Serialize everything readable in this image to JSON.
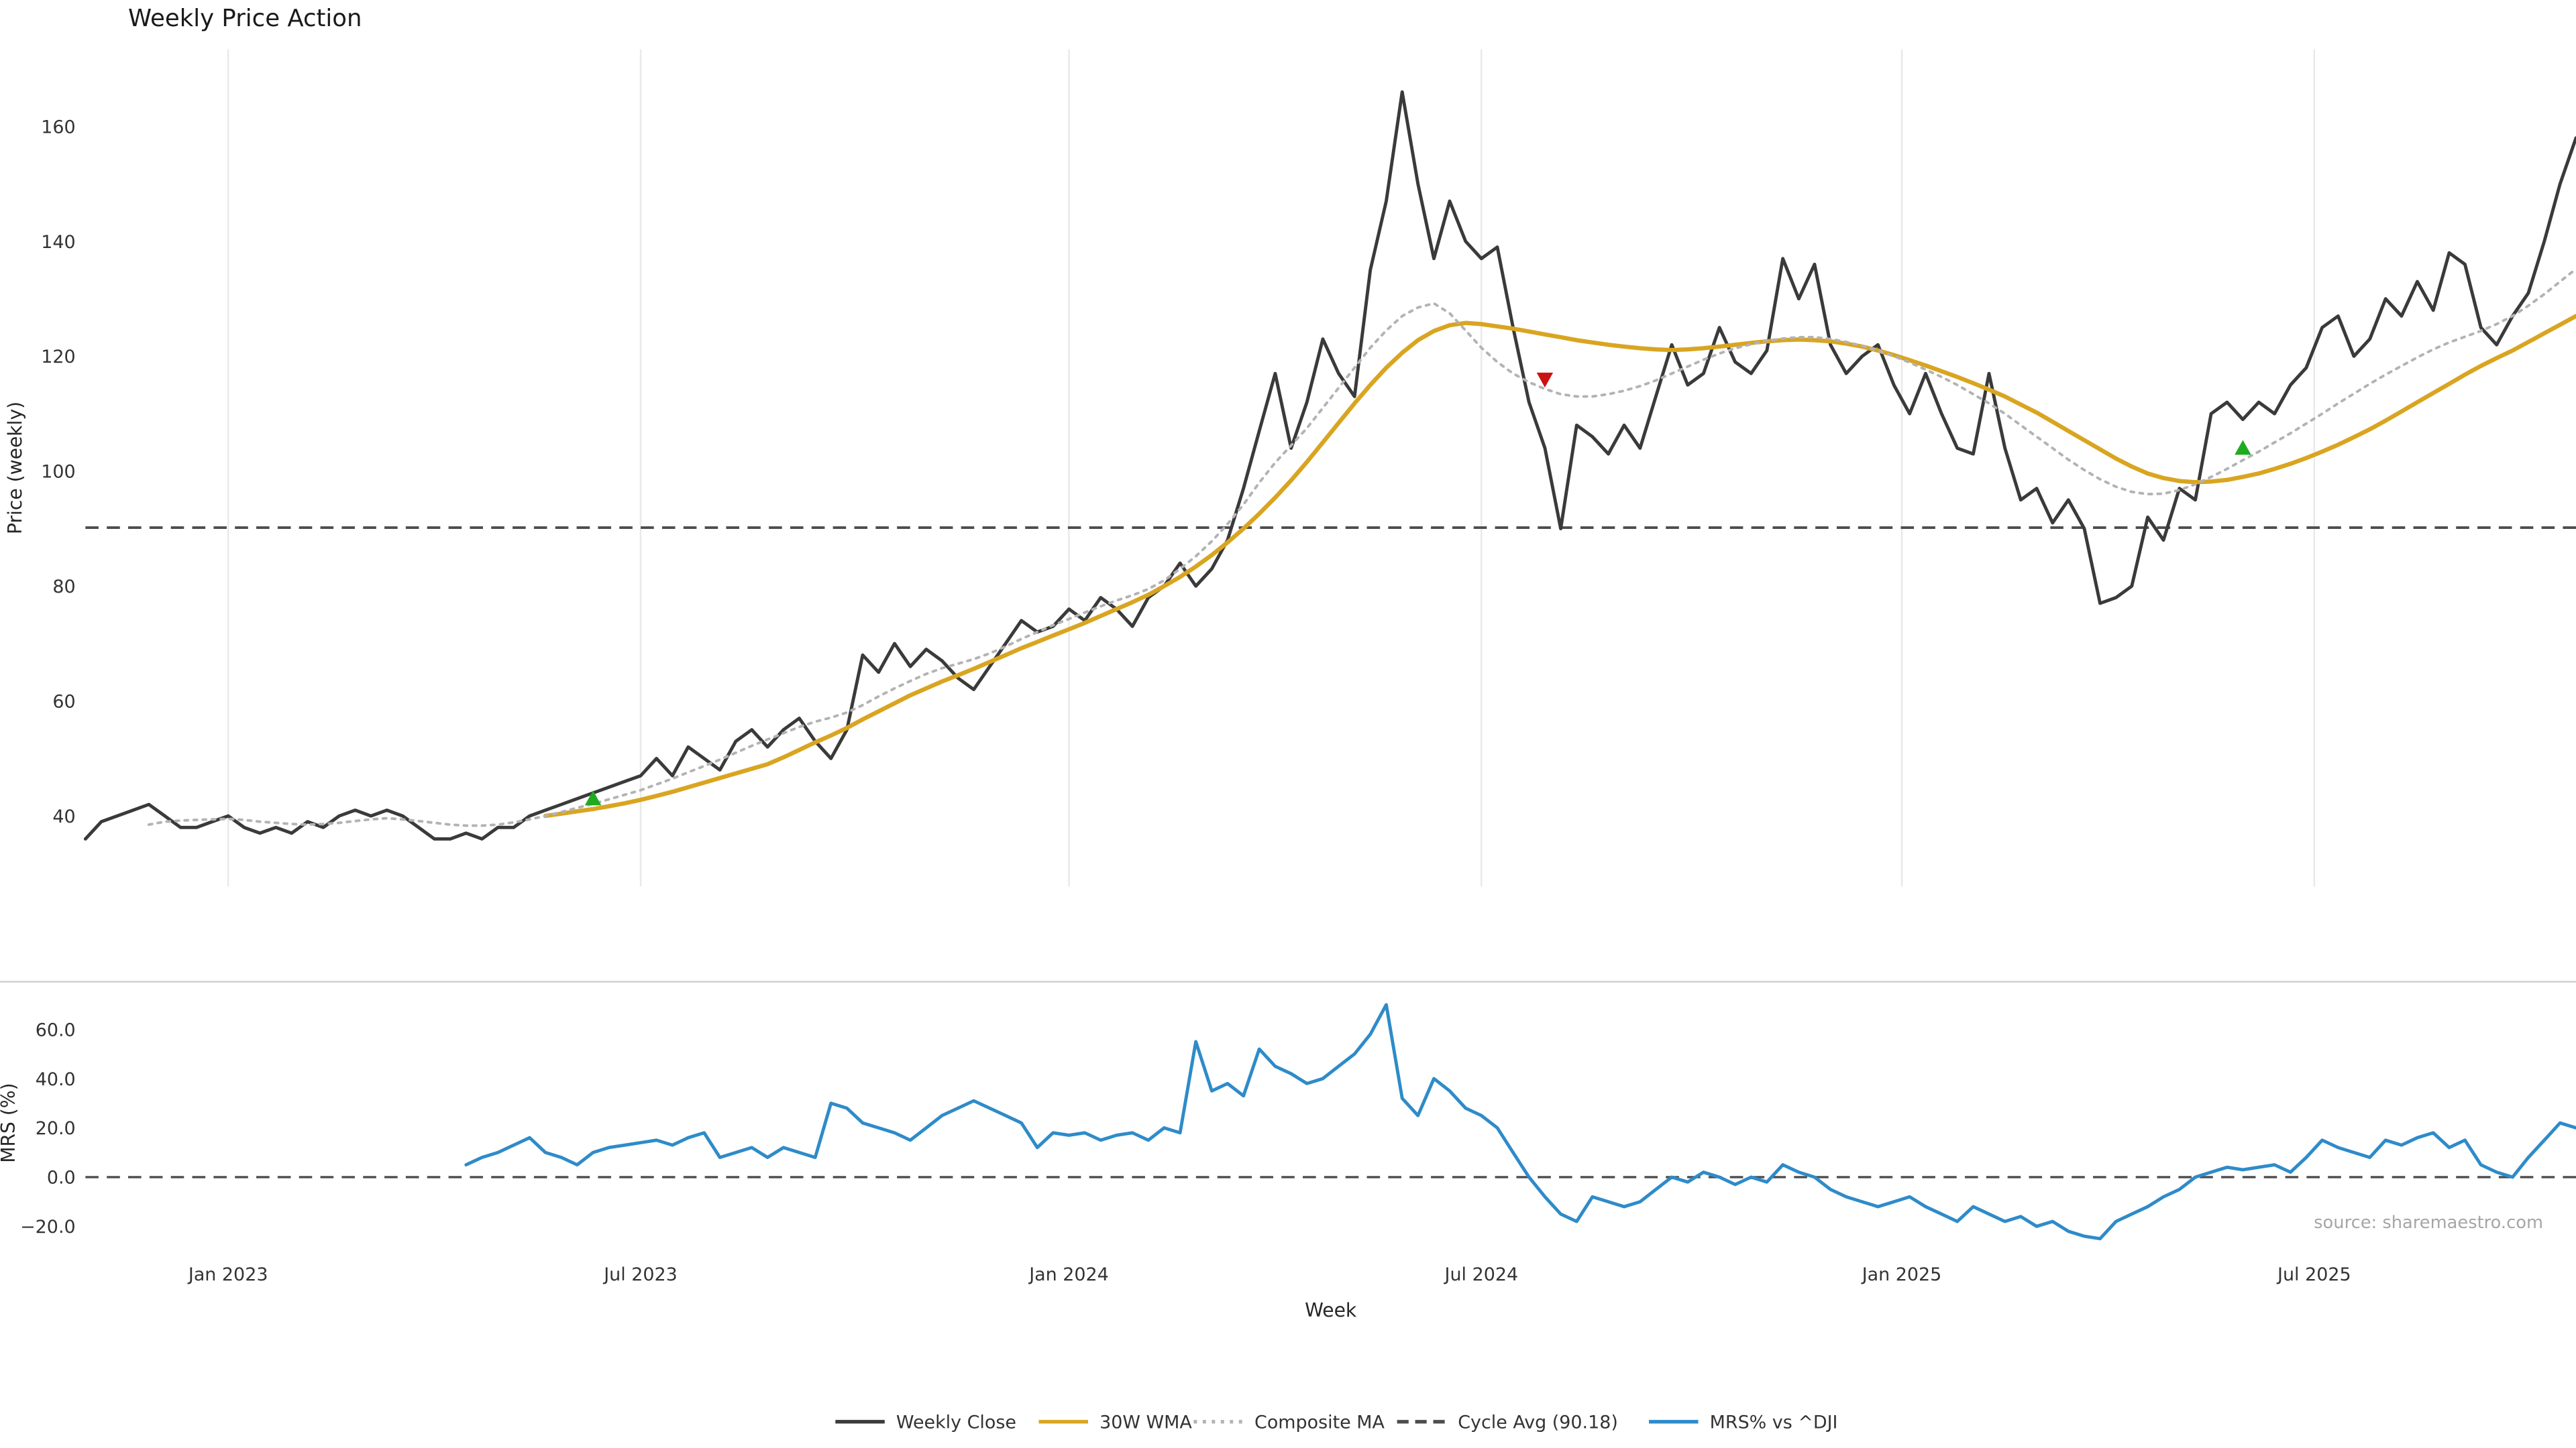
{
  "title": "Weekly Price Action",
  "source": "source: sharemaestro.com",
  "colors": {
    "close": "#3a3a3a",
    "wma": "#d9a521",
    "composite": "#b3b3b3",
    "cycle": "#4d4d4d",
    "mrs": "#2e8bc9",
    "buy": "#1faa1f",
    "sell": "#cc1111",
    "grid": "#e9e9e9",
    "divider": "#d0d0d0"
  },
  "legend": {
    "items": [
      {
        "label": "Weekly Close",
        "style": "solid",
        "color": "#3a3a3a"
      },
      {
        "label": "30W WMA",
        "style": "solid",
        "color": "#d9a521"
      },
      {
        "label": "Composite MA",
        "style": "dotted",
        "color": "#b3b3b3"
      },
      {
        "label": "Cycle Avg (90.18)",
        "style": "dashed",
        "color": "#4d4d4d"
      },
      {
        "label": "MRS% vs ^DJI",
        "style": "solid",
        "color": "#2e8bc9"
      }
    ]
  },
  "chart_data": {
    "type": "line",
    "title": "Weekly Price Action",
    "xlabel": "Week",
    "weeks_total": 158,
    "x_tick_labels": [
      "Jan 2023",
      "Jul 2023",
      "Jan 2024",
      "Jul 2024",
      "Jan 2025",
      "Jul 2025"
    ],
    "x_tick_weeks": [
      9,
      35,
      62,
      88,
      114.5,
      140.5
    ],
    "price_panel": {
      "ylabel": "Price (weekly)",
      "yticks": [
        40,
        60,
        80,
        100,
        120,
        140,
        160
      ],
      "ylim": [
        28,
        173
      ],
      "cycle_avg": 90.18,
      "markers": [
        {
          "week": 32,
          "value": 43,
          "type": "buy"
        },
        {
          "week": 92,
          "value": 116,
          "type": "sell"
        },
        {
          "week": 136,
          "value": 104,
          "type": "buy"
        }
      ],
      "series": [
        {
          "name": "Weekly Close",
          "color": "#3a3a3a",
          "width": 2,
          "dash": "",
          "values": [
            36,
            39,
            40,
            41,
            42,
            40,
            38,
            38,
            39,
            40,
            38,
            37,
            38,
            37,
            39,
            38,
            40,
            41,
            40,
            41,
            40,
            38,
            36,
            36,
            37,
            36,
            38,
            38,
            40,
            41,
            42,
            43,
            44,
            45,
            46,
            47,
            50,
            47,
            52,
            50,
            48,
            53,
            55,
            52,
            55,
            57,
            53,
            50,
            55,
            68,
            65,
            70,
            66,
            69,
            67,
            64,
            62,
            66,
            70,
            74,
            72,
            73,
            76,
            74,
            78,
            76,
            73,
            78,
            80,
            84,
            80,
            83,
            88,
            97,
            107,
            117,
            104,
            112,
            123,
            117,
            113,
            135,
            147,
            166,
            150,
            137,
            147,
            140,
            137,
            139,
            125,
            112,
            104,
            90,
            108,
            106,
            103,
            108,
            104,
            113,
            122,
            115,
            117,
            125,
            119,
            117,
            121,
            137,
            130,
            136,
            122,
            117,
            120,
            122,
            115,
            110,
            117,
            110,
            104,
            103,
            117,
            104,
            95,
            97,
            91,
            95,
            90,
            77,
            78,
            80,
            92,
            88,
            97,
            95,
            110,
            112,
            109,
            112,
            110,
            115,
            118,
            125,
            127,
            120,
            123,
            130,
            127,
            133,
            128,
            138,
            136,
            125,
            122,
            127,
            131,
            140,
            150,
            158
          ]
        },
        {
          "name": "30W WMA",
          "color": "#d9a521",
          "width": 2.6,
          "dash": "",
          "values": [
            null,
            null,
            null,
            null,
            null,
            null,
            null,
            null,
            null,
            null,
            null,
            null,
            null,
            null,
            null,
            null,
            null,
            null,
            null,
            null,
            null,
            null,
            null,
            null,
            null,
            null,
            null,
            null,
            null,
            40,
            40.4,
            40.8,
            41.2,
            41.7,
            42.2,
            42.8,
            43.5,
            44.2,
            45,
            45.8,
            46.6,
            47.4,
            48.2,
            49,
            50.2,
            51.5,
            52.8,
            54,
            55.3,
            56.8,
            58.2,
            59.6,
            61,
            62.2,
            63.4,
            64.5,
            65.6,
            66.8,
            68,
            69.2,
            70.3,
            71.4,
            72.5,
            73.6,
            74.8,
            76,
            77.2,
            78.5,
            80,
            81.6,
            83.4,
            85.4,
            87.6,
            90,
            92.6,
            95.4,
            98.4,
            101.6,
            105,
            108.4,
            111.8,
            115,
            118,
            120.6,
            122.8,
            124.4,
            125.4,
            125.8,
            125.6,
            125.2,
            124.8,
            124.3,
            123.8,
            123.3,
            122.8,
            122.4,
            122,
            121.7,
            121.4,
            121.2,
            121.1,
            121.2,
            121.4,
            121.7,
            122,
            122.3,
            122.6,
            122.8,
            122.9,
            122.8,
            122.6,
            122.2,
            121.7,
            121,
            120.2,
            119.3,
            118.4,
            117.4,
            116.4,
            115.3,
            114.2,
            113,
            111.6,
            110.2,
            108.6,
            107,
            105.4,
            103.8,
            102.2,
            100.8,
            99.6,
            98.8,
            98.3,
            98.1,
            98.2,
            98.5,
            99,
            99.6,
            100.4,
            101.3,
            102.3,
            103.4,
            104.6,
            105.9,
            107.3,
            108.8,
            110.4,
            112,
            113.6,
            115.2,
            116.8,
            118.3,
            119.7,
            121,
            122.5,
            124,
            125.5,
            127
          ]
        },
        {
          "name": "Composite MA",
          "color": "#b3b3b3",
          "width": 1.6,
          "dash": "2 3.5",
          "values": [
            null,
            null,
            null,
            null,
            38.5,
            39,
            39.2,
            39.3,
            39.4,
            39.5,
            39.3,
            39,
            38.8,
            38.6,
            38.5,
            38.6,
            38.8,
            39.1,
            39.4,
            39.6,
            39.4,
            39.1,
            38.8,
            38.5,
            38.3,
            38.3,
            38.5,
            38.9,
            39.4,
            40,
            40.7,
            41.4,
            42.1,
            42.9,
            43.7,
            44.5,
            45.5,
            46.5,
            47.6,
            48.7,
            49.8,
            51,
            52.2,
            53.3,
            54.4,
            55.5,
            56.4,
            57.1,
            58,
            59.3,
            60.8,
            62.2,
            63.5,
            64.7,
            65.7,
            66.5,
            67.3,
            68.3,
            69.5,
            70.8,
            72,
            73.2,
            74.3,
            75.4,
            76.5,
            77.5,
            78.4,
            79.5,
            81,
            83,
            85.2,
            87.8,
            90.8,
            94.2,
            98,
            101.5,
            104.5,
            107.5,
            111,
            114.5,
            118,
            121.5,
            124.5,
            127,
            128.5,
            129.2,
            127.5,
            124.5,
            121.5,
            119,
            117,
            115.5,
            114.3,
            113.4,
            113,
            113,
            113.4,
            114,
            114.8,
            115.8,
            117,
            118.2,
            119.4,
            120.5,
            121.4,
            122.1,
            122.7,
            123.1,
            123.3,
            123.3,
            123,
            122.5,
            121.8,
            121,
            120,
            118.9,
            117.7,
            116.4,
            115,
            113.4,
            111.8,
            110,
            108,
            106,
            104,
            102,
            100.2,
            98.6,
            97.3,
            96.4,
            96,
            96.1,
            96.7,
            97.7,
            99,
            100.4,
            101.9,
            103.4,
            105,
            106.6,
            108.3,
            110,
            111.8,
            113.5,
            115.2,
            116.8,
            118.3,
            119.8,
            121.2,
            122.4,
            123.4,
            124.4,
            125.6,
            127,
            128.8,
            130.8,
            133,
            135.2
          ]
        }
      ]
    },
    "mrs_panel": {
      "ylabel": "MRS (%)",
      "yticks": [
        -20,
        0,
        20,
        40,
        60
      ],
      "ylim": [
        -35,
        79
      ],
      "zero_line": 0,
      "series": [
        {
          "name": "MRS% vs ^DJI",
          "color": "#2e8bc9",
          "width": 2,
          "dash": "",
          "values": [
            null,
            null,
            null,
            null,
            null,
            null,
            null,
            null,
            null,
            null,
            null,
            null,
            null,
            null,
            null,
            null,
            null,
            null,
            null,
            null,
            null,
            null,
            null,
            null,
            5,
            8,
            10,
            13,
            16,
            10,
            8,
            5,
            10,
            12,
            13,
            14,
            15,
            13,
            16,
            18,
            8,
            10,
            12,
            8,
            12,
            10,
            8,
            30,
            28,
            22,
            20,
            18,
            15,
            20,
            25,
            28,
            31,
            28,
            25,
            22,
            12,
            18,
            17,
            18,
            15,
            17,
            18,
            15,
            20,
            18,
            55,
            35,
            38,
            33,
            52,
            45,
            42,
            38,
            40,
            45,
            50,
            58,
            70,
            32,
            25,
            40,
            35,
            28,
            25,
            20,
            10,
            0,
            -8,
            -15,
            -18,
            -8,
            -10,
            -12,
            -10,
            -5,
            0,
            -2,
            2,
            0,
            -3,
            0,
            -2,
            5,
            2,
            0,
            -5,
            -8,
            -10,
            -12,
            -10,
            -8,
            -12,
            -15,
            -18,
            -12,
            -15,
            -18,
            -16,
            -20,
            -18,
            -22,
            -24,
            -25,
            -18,
            -15,
            -12,
            -8,
            -5,
            0,
            2,
            4,
            3,
            4,
            5,
            2,
            8,
            15,
            12,
            10,
            8,
            15,
            13,
            16,
            18,
            12,
            15,
            5,
            2,
            0,
            8,
            15,
            22,
            20
          ]
        }
      ]
    }
  }
}
